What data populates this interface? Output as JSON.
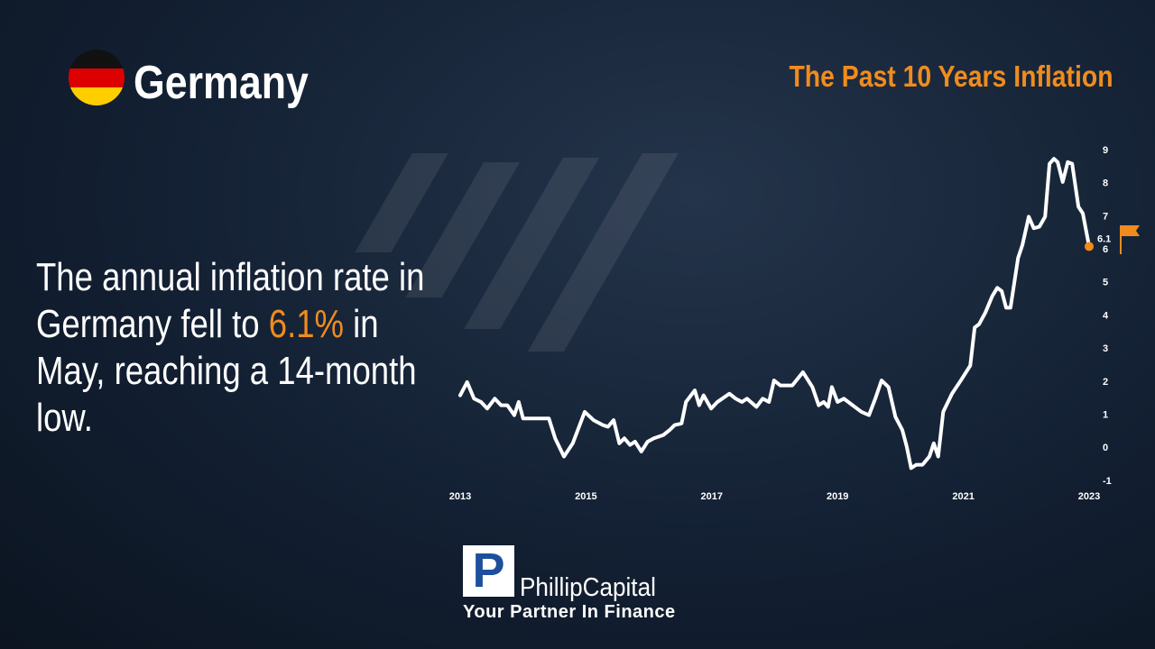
{
  "header": {
    "country": "Germany",
    "chart_title": "The Past 10 Years Inflation"
  },
  "statement": {
    "before": "The annual inflation rate in Germany fell to ",
    "highlight": "6.1%",
    "after": " in May, reaching a 14-month low."
  },
  "logo": {
    "mark": "P",
    "name": "PhillipCapital",
    "tagline": "Your Partner In Finance"
  },
  "chart_data": {
    "type": "line",
    "x": [
      2013.0,
      2013.11,
      2013.22,
      2013.33,
      2013.43,
      2013.55,
      2013.65,
      2013.75,
      2013.86,
      2013.93,
      2014.0,
      2014.15,
      2014.29,
      2014.41,
      2014.51,
      2014.65,
      2014.79,
      2014.98,
      2015.12,
      2015.27,
      2015.35,
      2015.44,
      2015.53,
      2015.61,
      2015.7,
      2015.78,
      2015.88,
      2015.98,
      2016.08,
      2016.23,
      2016.33,
      2016.41,
      2016.52,
      2016.59,
      2016.73,
      2016.8,
      2016.87,
      2016.99,
      2017.09,
      2017.28,
      2017.38,
      2017.48,
      2017.56,
      2017.71,
      2017.81,
      2017.91,
      2017.99,
      2018.09,
      2018.28,
      2018.45,
      2018.6,
      2018.7,
      2018.78,
      2018.85,
      2018.91,
      2019.0,
      2019.1,
      2019.24,
      2019.38,
      2019.5,
      2019.6,
      2019.7,
      2019.81,
      2019.92,
      2020.03,
      2020.1,
      2020.17,
      2020.25,
      2020.35,
      2020.46,
      2020.53,
      2020.6,
      2020.68,
      2020.82,
      2020.96,
      2021.11,
      2021.18,
      2021.25,
      2021.35,
      2021.46,
      2021.54,
      2021.61,
      2021.68,
      2021.75,
      2021.87,
      2021.94,
      2022.04,
      2022.12,
      2022.21,
      2022.3,
      2022.37,
      2022.44,
      2022.5,
      2022.58,
      2022.66,
      2022.73,
      2022.83,
      2022.9,
      2023.0
    ],
    "series": [
      {
        "color": "#ffffff",
        "values": [
          1.6,
          2.0,
          1.5,
          1.4,
          1.2,
          1.5,
          1.3,
          1.3,
          1.0,
          1.4,
          0.9,
          0.9,
          0.9,
          0.9,
          0.3,
          -0.25,
          0.15,
          1.1,
          0.85,
          0.7,
          0.65,
          0.85,
          0.15,
          0.3,
          0.1,
          0.2,
          -0.1,
          0.2,
          0.3,
          0.4,
          0.55,
          0.7,
          0.75,
          1.4,
          1.75,
          1.3,
          1.6,
          1.2,
          1.4,
          1.65,
          1.5,
          1.4,
          1.5,
          1.25,
          1.5,
          1.4,
          2.05,
          1.9,
          1.9,
          2.3,
          1.85,
          1.3,
          1.4,
          1.25,
          1.85,
          1.4,
          1.5,
          1.3,
          1.1,
          1.0,
          1.5,
          2.05,
          1.85,
          0.95,
          0.55,
          0.05,
          -0.6,
          -0.5,
          -0.5,
          -0.25,
          0.15,
          -0.25,
          1.1,
          1.65,
          2.05,
          2.5,
          3.65,
          3.75,
          4.1,
          4.6,
          4.85,
          4.75,
          4.25,
          4.25,
          5.75,
          6.15,
          7.0,
          6.65,
          6.7,
          7.0,
          8.6,
          8.75,
          8.65,
          8.05,
          8.65,
          8.6,
          7.3,
          7.1,
          6.1
        ]
      }
    ],
    "end_marker_color": "#f08c1e",
    "xlim": [
      2013,
      2023
    ],
    "xticks": [
      2013,
      2015,
      2017,
      2019,
      2021,
      2023
    ],
    "ylim": [
      -1,
      9
    ],
    "yticks": [
      -1,
      0,
      1,
      2,
      3,
      4,
      5,
      6,
      7,
      8,
      9
    ]
  }
}
